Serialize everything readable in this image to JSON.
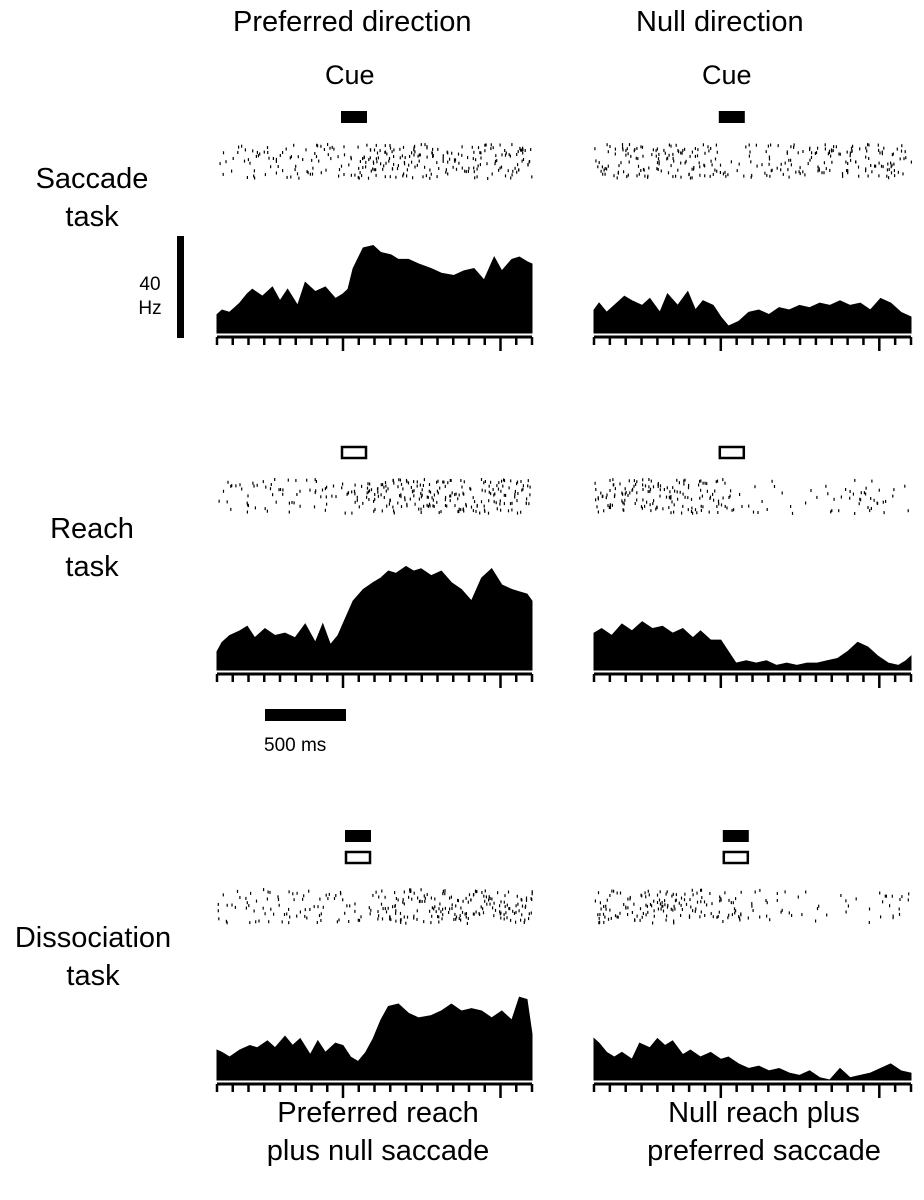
{
  "columns": {
    "left_title": "Preferred direction",
    "right_title": "Null direction",
    "cue_label": "Cue"
  },
  "rows": [
    {
      "label_line1": "Saccade",
      "label_line2": "task"
    },
    {
      "label_line1": "Reach",
      "label_line2": "task"
    },
    {
      "label_line1": "Dissociation",
      "label_line2": "task"
    }
  ],
  "scale": {
    "rate_value": "40",
    "rate_unit": "Hz",
    "time_label": "500 ms"
  },
  "captions": {
    "left_line1": "Preferred reach",
    "left_line2": "plus null saccade",
    "right_line1": "Null reach plus",
    "right_line2": "preferred saccade"
  },
  "colors": {
    "fill": "#000000",
    "background": "#ffffff"
  },
  "chart_data": [
    {
      "type": "area",
      "title": "",
      "row": "Saccade task",
      "column": "Preferred direction",
      "x_unit": "ms",
      "y_unit": "Hz",
      "xlim": [
        -1000,
        1500
      ],
      "ylim": [
        0,
        60
      ],
      "cue": "filled",
      "x": [
        -1000,
        -960,
        -900,
        -860,
        -820,
        -760,
        -720,
        -640,
        -560,
        -500,
        -440,
        -360,
        -300,
        -220,
        -140,
        -60,
        0,
        40,
        80,
        160,
        240,
        300,
        380,
        440,
        520,
        600,
        700,
        780,
        880,
        960,
        1040,
        1120,
        1200,
        1260,
        1340,
        1400,
        1460,
        1500
      ],
      "values": [
        8,
        10,
        9,
        11,
        13,
        17,
        19,
        16,
        20,
        14,
        19,
        12,
        22,
        18,
        20,
        15,
        17,
        19,
        28,
        37,
        38,
        35,
        34,
        32,
        32,
        30,
        28,
        26,
        25,
        27,
        28,
        23,
        33,
        27,
        32,
        33,
        31,
        30
      ]
    },
    {
      "type": "area",
      "title": "",
      "row": "Saccade task",
      "column": "Null direction",
      "x_unit": "ms",
      "y_unit": "Hz",
      "xlim": [
        -1000,
        1500
      ],
      "ylim": [
        0,
        60
      ],
      "cue": "filled",
      "x": [
        -1000,
        -960,
        -900,
        -820,
        -760,
        -700,
        -620,
        -560,
        -480,
        -420,
        -340,
        -260,
        -200,
        -140,
        -60,
        0,
        60,
        140,
        220,
        300,
        380,
        460,
        540,
        620,
        700,
        780,
        860,
        940,
        1020,
        1100,
        1180,
        1260,
        1340,
        1420,
        1500
      ],
      "values": [
        10,
        13,
        9,
        13,
        16,
        14,
        12,
        15,
        9,
        17,
        12,
        18,
        10,
        14,
        12,
        7,
        3,
        5,
        9,
        10,
        8,
        11,
        10,
        12,
        11,
        13,
        12,
        14,
        12,
        13,
        10,
        15,
        13,
        9,
        7
      ]
    },
    {
      "type": "area",
      "title": "",
      "row": "Reach task",
      "column": "Preferred direction",
      "x_unit": "ms",
      "y_unit": "Hz",
      "xlim": [
        -1000,
        1500
      ],
      "ylim": [
        0,
        60
      ],
      "cue": "open",
      "x": [
        -1000,
        -960,
        -900,
        -820,
        -760,
        -700,
        -620,
        -540,
        -460,
        -380,
        -300,
        -220,
        -160,
        -100,
        -40,
        0,
        80,
        160,
        240,
        300,
        360,
        420,
        500,
        560,
        620,
        700,
        780,
        860,
        940,
        1020,
        1100,
        1180,
        1260,
        1340,
        1400,
        1460,
        1500
      ],
      "values": [
        8,
        12,
        15,
        17,
        19,
        14,
        18,
        15,
        16,
        14,
        20,
        12,
        20,
        11,
        15,
        20,
        30,
        35,
        38,
        40,
        43,
        42,
        45,
        43,
        44,
        41,
        43,
        38,
        35,
        30,
        40,
        44,
        37,
        35,
        34,
        33,
        30
      ]
    },
    {
      "type": "area",
      "title": "",
      "row": "Reach task",
      "column": "Null direction",
      "x_unit": "ms",
      "y_unit": "Hz",
      "xlim": [
        -1000,
        1500
      ],
      "ylim": [
        0,
        60
      ],
      "cue": "open",
      "x": [
        -1000,
        -940,
        -860,
        -780,
        -700,
        -620,
        -540,
        -460,
        -380,
        -300,
        -220,
        -160,
        -80,
        0,
        60,
        120,
        200,
        280,
        360,
        440,
        520,
        600,
        680,
        760,
        840,
        920,
        1000,
        1080,
        1160,
        1240,
        1320,
        1400,
        1460,
        1500
      ],
      "values": [
        16,
        18,
        15,
        20,
        17,
        21,
        18,
        19,
        16,
        18,
        14,
        17,
        13,
        13,
        8,
        3,
        4,
        3,
        4,
        2,
        3,
        2,
        3,
        3,
        4,
        5,
        8,
        12,
        10,
        6,
        3,
        2,
        4,
        6
      ]
    },
    {
      "type": "area",
      "title": "",
      "row": "Dissociation task",
      "column": "Preferred direction",
      "x_unit": "ms",
      "y_unit": "Hz",
      "xlim": [
        -1000,
        1500
      ],
      "ylim": [
        0,
        60
      ],
      "cue": "filled+open",
      "x": [
        -1000,
        -960,
        -900,
        -820,
        -740,
        -680,
        -600,
        -540,
        -460,
        -400,
        -340,
        -260,
        -200,
        -140,
        -60,
        0,
        60,
        120,
        180,
        240,
        300,
        360,
        440,
        520,
        600,
        700,
        780,
        860,
        940,
        1020,
        1100,
        1180,
        1260,
        1340,
        1400,
        1460,
        1500
      ],
      "values": [
        13,
        12,
        10,
        13,
        15,
        14,
        17,
        14,
        19,
        15,
        18,
        11,
        17,
        12,
        16,
        15,
        10,
        8,
        12,
        18,
        26,
        32,
        33,
        29,
        27,
        28,
        30,
        33,
        30,
        31,
        30,
        27,
        30,
        26,
        36,
        35,
        20
      ]
    },
    {
      "type": "area",
      "title": "",
      "row": "Dissociation task",
      "column": "Null direction",
      "x_unit": "ms",
      "y_unit": "Hz",
      "xlim": [
        -1000,
        1500
      ],
      "ylim": [
        0,
        60
      ],
      "cue": "filled+open",
      "x": [
        -1000,
        -960,
        -900,
        -840,
        -780,
        -700,
        -640,
        -560,
        -500,
        -440,
        -380,
        -300,
        -240,
        -160,
        -80,
        0,
        60,
        140,
        220,
        300,
        380,
        460,
        540,
        620,
        700,
        780,
        860,
        940,
        1020,
        1100,
        1180,
        1260,
        1340,
        1420,
        1500
      ],
      "values": [
        18,
        16,
        12,
        10,
        12,
        9,
        16,
        14,
        18,
        15,
        17,
        11,
        13,
        10,
        12,
        9,
        10,
        7,
        5,
        6,
        4,
        5,
        3,
        2,
        4,
        1,
        0,
        5,
        1,
        2,
        3,
        5,
        7,
        4,
        3
      ]
    }
  ]
}
